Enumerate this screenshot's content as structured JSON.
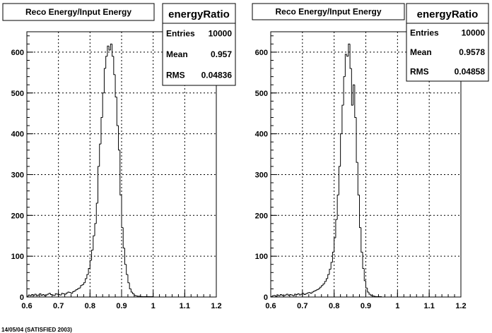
{
  "footer": "14/05/04  (SATISFIED 2003)",
  "chart_data": [
    {
      "type": "histogram",
      "title": "Reco Energy/Input Energy",
      "xlim": [
        0.6,
        1.2
      ],
      "ylim": [
        0,
        650
      ],
      "xticks": [
        "0.6",
        "0.7",
        "0.8",
        "0.9",
        "1",
        "1.1",
        "1.2"
      ],
      "yticks": [
        "0",
        "100",
        "200",
        "300",
        "400",
        "500",
        "600"
      ],
      "grid": true,
      "stats": {
        "name": "energyRatio",
        "rows": [
          {
            "label": "Entries",
            "value": "10000"
          },
          {
            "label": "Mean",
            "value": "0.957"
          },
          {
            "label": "RMS",
            "value": "0.04836"
          }
        ]
      },
      "bin_start": 0.6,
      "bin_width": 0.005,
      "values": [
        2,
        5,
        3,
        6,
        4,
        7,
        3,
        5,
        8,
        4,
        6,
        3,
        5,
        7,
        9,
        6,
        5,
        4,
        8,
        7,
        6,
        5,
        9,
        8,
        7,
        10,
        12,
        11,
        9,
        13,
        15,
        18,
        20,
        22,
        28,
        30,
        35,
        45,
        55,
        70,
        90,
        115,
        150,
        180,
        230,
        320,
        375,
        440,
        500,
        560,
        590,
        615,
        605,
        620,
        590,
        545,
        490,
        420,
        360,
        250,
        170,
        120,
        80,
        55,
        35,
        20,
        12,
        8,
        4,
        3,
        2,
        2,
        1,
        1,
        1,
        1,
        1,
        1,
        1,
        1,
        0,
        0,
        0,
        0,
        0,
        0,
        0,
        0,
        0,
        0,
        0,
        0,
        0,
        0,
        0,
        0,
        0,
        0,
        0,
        0,
        0,
        0,
        0,
        0,
        0,
        0,
        0,
        0,
        0,
        0,
        0,
        0,
        0,
        0,
        0,
        0,
        0,
        0,
        0,
        0
      ]
    },
    {
      "type": "histogram",
      "title": "Reco Energy/Input Energy",
      "xlim": [
        0.6,
        1.2
      ],
      "ylim": [
        0,
        650
      ],
      "xticks": [
        "0.6",
        "0.7",
        "0.8",
        "0.9",
        "1",
        "1.1",
        "1.2"
      ],
      "yticks": [
        "0",
        "100",
        "200",
        "300",
        "400",
        "500",
        "600"
      ],
      "grid": true,
      "stats": {
        "name": "energyRatio",
        "rows": [
          {
            "label": "Entries",
            "value": "10000"
          },
          {
            "label": "Mean",
            "value": "0.9578"
          },
          {
            "label": "RMS",
            "value": "0.04858"
          }
        ]
      },
      "bin_start": 0.6,
      "bin_width": 0.005,
      "values": [
        1,
        3,
        4,
        2,
        5,
        3,
        6,
        4,
        3,
        5,
        7,
        4,
        6,
        5,
        3,
        7,
        6,
        8,
        5,
        7,
        9,
        6,
        8,
        10,
        11,
        9,
        12,
        14,
        16,
        18,
        20,
        24,
        28,
        32,
        38,
        45,
        55,
        68,
        85,
        110,
        145,
        190,
        250,
        320,
        400,
        470,
        540,
        595,
        590,
        620,
        560,
        470,
        520,
        440,
        330,
        250,
        170,
        110,
        70,
        40,
        22,
        12,
        7,
        4,
        3,
        2,
        1,
        1,
        1,
        1,
        0,
        0,
        0,
        0,
        0,
        0,
        0,
        0,
        0,
        0,
        0,
        0,
        0,
        0,
        0,
        0,
        0,
        0,
        0,
        0,
        0,
        0,
        0,
        0,
        0,
        0,
        0,
        0,
        0,
        0,
        0,
        0,
        0,
        0,
        0,
        0,
        0,
        0,
        0,
        0,
        0,
        0,
        0,
        0,
        0,
        0,
        0,
        0,
        0,
        0
      ]
    }
  ]
}
